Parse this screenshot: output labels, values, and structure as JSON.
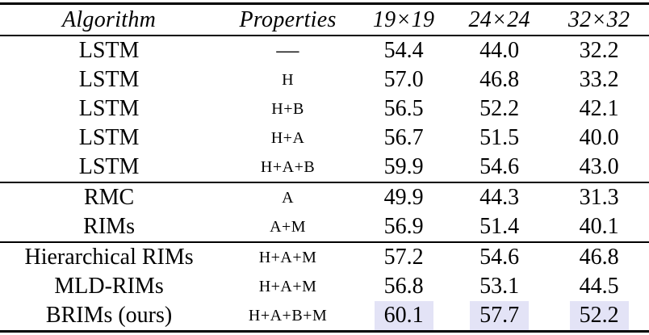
{
  "columns": [
    "Algorithm",
    "Properties",
    "19×19",
    "24×24",
    "32×32"
  ],
  "rows": [
    {
      "algorithm": "LSTM",
      "properties": "—",
      "v1": "54.4",
      "v2": "44.0",
      "v3": "32.2"
    },
    {
      "algorithm": "LSTM",
      "properties": "H",
      "v1": "57.0",
      "v2": "46.8",
      "v3": "33.2"
    },
    {
      "algorithm": "LSTM",
      "properties": "H+B",
      "v1": "56.5",
      "v2": "52.2",
      "v3": "42.1"
    },
    {
      "algorithm": "LSTM",
      "properties": "H+A",
      "v1": "56.7",
      "v2": "51.5",
      "v3": "40.0"
    },
    {
      "algorithm": "LSTM",
      "properties": "H+A+B",
      "v1": "59.9",
      "v2": "54.6",
      "v3": "43.0"
    },
    {
      "algorithm": "RMC",
      "properties": "A",
      "v1": "49.9",
      "v2": "44.3",
      "v3": "31.3"
    },
    {
      "algorithm": "RIMs",
      "properties": "A+M",
      "v1": "56.9",
      "v2": "51.4",
      "v3": "40.1"
    },
    {
      "algorithm": "Hierarchical RIMs",
      "properties": "H+A+M",
      "v1": "57.2",
      "v2": "54.6",
      "v3": "46.8"
    },
    {
      "algorithm": "MLD-RIMs",
      "properties": "H+A+M",
      "v1": "56.8",
      "v2": "53.1",
      "v3": "44.5"
    },
    {
      "algorithm": "BRIMs (ours)",
      "properties": "H+A+B+M",
      "v1": "60.1",
      "v2": "57.7",
      "v3": "52.2"
    }
  ],
  "colors": {
    "highlight": "#e3e3f6",
    "text": "#000000",
    "background": "#ffffff"
  }
}
